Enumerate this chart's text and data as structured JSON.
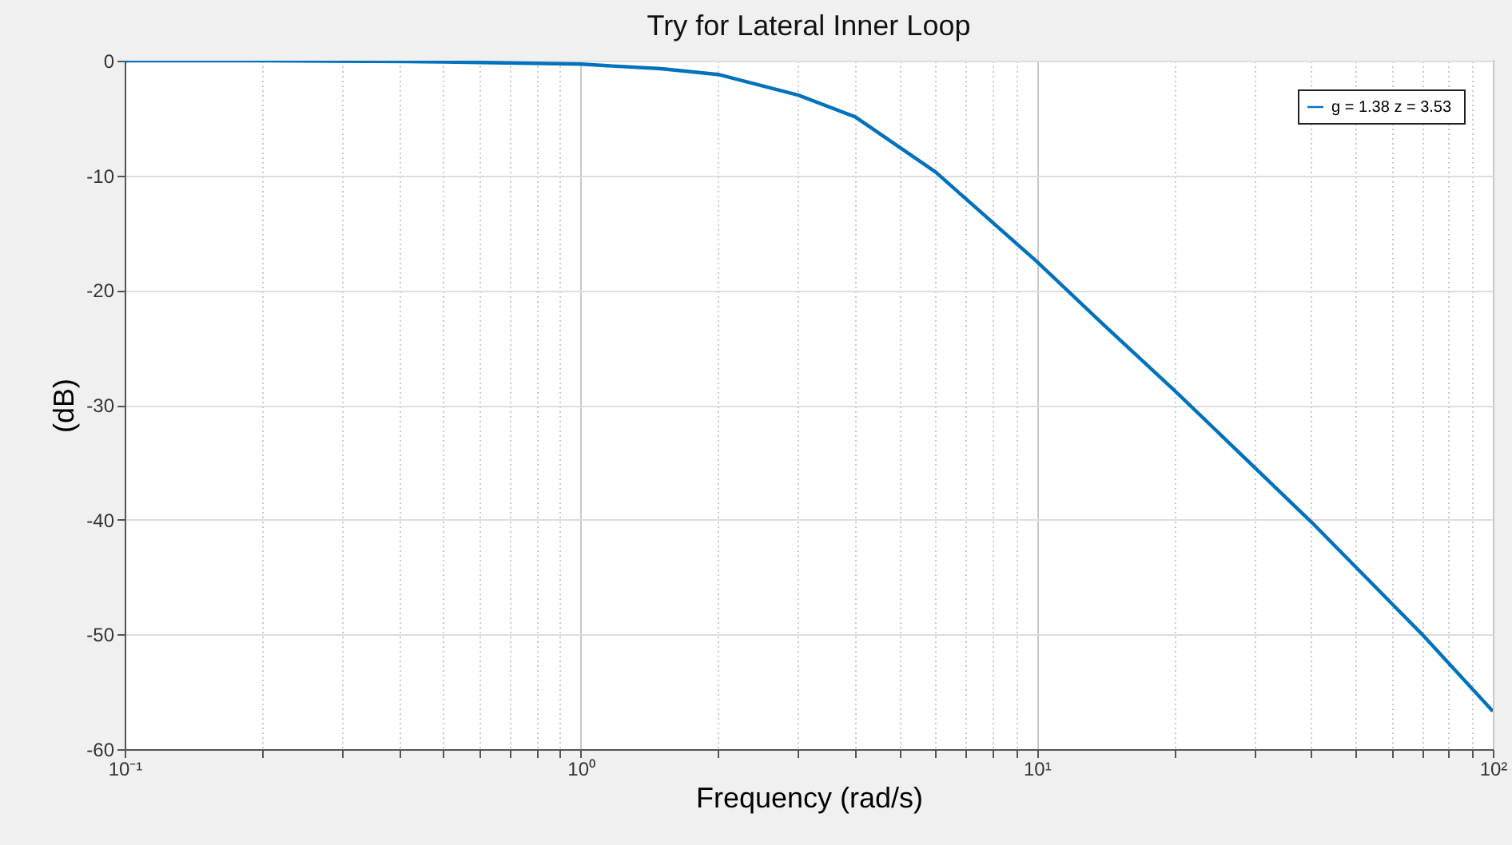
{
  "chart_data": {
    "type": "line",
    "title": "Try for Lateral Inner Loop",
    "xlabel": "Frequency  (rad/s)",
    "ylabel": "(dB)",
    "log": "x",
    "grid": true,
    "legend": "top right",
    "line_style": "solid",
    "marker": "none",
    "xlim": [
      0.1,
      100
    ],
    "ylim": [
      -60,
      0
    ],
    "xticks": [
      {
        "value": 0.1,
        "label": "10⁻¹"
      },
      {
        "value": 0.2,
        "label": null
      },
      {
        "value": 0.3,
        "label": null
      },
      {
        "value": 0.4,
        "label": null
      },
      {
        "value": 0.5,
        "label": null
      },
      {
        "value": 0.6,
        "label": null
      },
      {
        "value": 0.7,
        "label": null
      },
      {
        "value": 0.8,
        "label": null
      },
      {
        "value": 0.9,
        "label": null
      },
      {
        "value": 1,
        "label": "10⁰"
      },
      {
        "value": 2,
        "label": null
      },
      {
        "value": 3,
        "label": null
      },
      {
        "value": 4,
        "label": null
      },
      {
        "value": 5,
        "label": null
      },
      {
        "value": 6,
        "label": null
      },
      {
        "value": 7,
        "label": null
      },
      {
        "value": 8,
        "label": null
      },
      {
        "value": 9,
        "label": null
      },
      {
        "value": 10,
        "label": "10¹"
      },
      {
        "value": 20,
        "label": null
      },
      {
        "value": 30,
        "label": null
      },
      {
        "value": 40,
        "label": null
      },
      {
        "value": 50,
        "label": null
      },
      {
        "value": 60,
        "label": null
      },
      {
        "value": 70,
        "label": null
      },
      {
        "value": 80,
        "label": null
      },
      {
        "value": 90,
        "label": null
      },
      {
        "value": 100,
        "label": "10²"
      }
    ],
    "yticks": [
      -60,
      -50,
      -40,
      -30,
      -20,
      -10,
      0
    ],
    "x": [
      0.1,
      0.2,
      0.5,
      1,
      1.5,
      2,
      3,
      4,
      6,
      10,
      14,
      20,
      40,
      70,
      100
    ],
    "series": [
      {
        "name": "g = 1.38  z = 3.53",
        "color": "#0072bd",
        "values": [
          0,
          0,
          -0.1,
          -0.3,
          -0.7,
          -1.2,
          -3,
          -4.9,
          -9.7,
          -17.5,
          -23,
          -28.7,
          -40.2,
          -50,
          -56.7
        ]
      }
    ]
  }
}
